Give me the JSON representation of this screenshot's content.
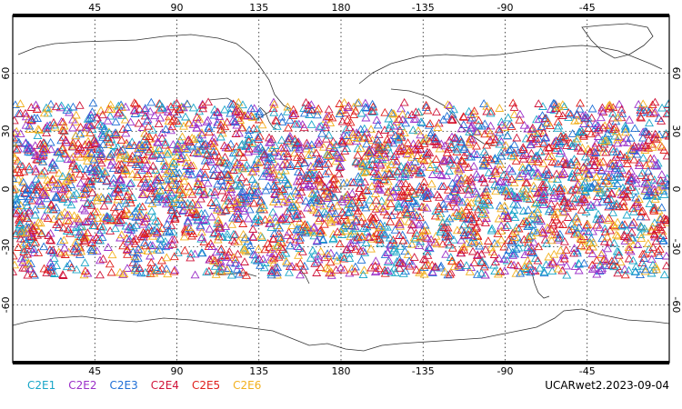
{
  "chart_data": {
    "type": "scatter",
    "projection": "cylindrical-equidistant",
    "center_longitude": 180,
    "x_ticks_top": [
      "45",
      "90",
      "135",
      "180",
      "-135",
      "-90",
      "-45"
    ],
    "x_ticks_bottom": [
      "45",
      "90",
      "135",
      "180",
      "-135",
      "-90",
      "-45"
    ],
    "y_ticks": [
      "60",
      "30",
      "0",
      "-30",
      "-60"
    ],
    "xlim": [
      0,
      360
    ],
    "ylim": [
      -90,
      90
    ],
    "grid": true,
    "marker": "triangle-open",
    "latitude_band": [
      -45,
      45
    ],
    "series": [
      {
        "name": "C2E1",
        "color": "#1aa6c8"
      },
      {
        "name": "C2E2",
        "color": "#9b2fc8"
      },
      {
        "name": "C2E3",
        "color": "#1f6fd6"
      },
      {
        "name": "C2E4",
        "color": "#d0143a"
      },
      {
        "name": "C2E5",
        "color": "#e0201c"
      },
      {
        "name": "C2E6",
        "color": "#f2b01e"
      }
    ]
  },
  "legend": {
    "items": [
      "C2E1",
      "C2E2",
      "C2E3",
      "C2E4",
      "C2E5",
      "C2E6"
    ]
  },
  "caption": "UCARwet2.2023-09-04"
}
